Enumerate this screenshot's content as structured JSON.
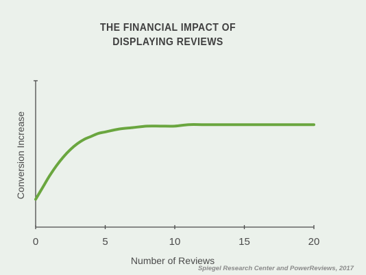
{
  "chart_data": {
    "type": "line",
    "title_lines": [
      "THE FINANCIAL IMPACT OF",
      "DISPLAYING REVIEWS"
    ],
    "xlabel": "Number of Reviews",
    "ylabel": "Conversion Increase",
    "xlim": [
      0,
      20
    ],
    "xticks": [
      0,
      5,
      10,
      15,
      20
    ],
    "ylim": [
      0,
      1
    ],
    "yticks_shown": false,
    "grid": false,
    "legend": "none",
    "line_color": "#6aa63f",
    "axis_color": "#4a4a4a",
    "series": [
      {
        "x": [
          0,
          0.5,
          1,
          1.5,
          2,
          2.5,
          3,
          3.5,
          4,
          4.5,
          5,
          6,
          7,
          8,
          9,
          10,
          11,
          12,
          13,
          14,
          15,
          16,
          17,
          18,
          19,
          20
        ],
        "values": [
          0.19,
          0.27,
          0.35,
          0.42,
          0.48,
          0.53,
          0.57,
          0.6,
          0.62,
          0.64,
          0.65,
          0.67,
          0.68,
          0.69,
          0.69,
          0.69,
          0.7,
          0.7,
          0.7,
          0.7,
          0.7,
          0.7,
          0.7,
          0.7,
          0.7,
          0.7
        ]
      }
    ]
  },
  "source": "Spiegel Research Center and PowerReviews, 2017"
}
